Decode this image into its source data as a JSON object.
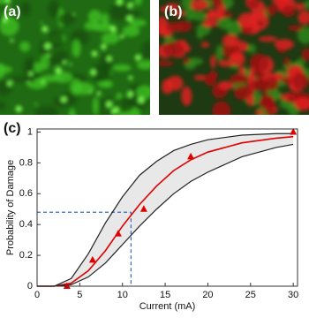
{
  "panels": {
    "a": "(a)",
    "b": "(b)",
    "c": "(c)"
  },
  "chart_data": {
    "type": "line",
    "xlabel": "Current (mA)",
    "ylabel": "Probability of Damage",
    "xlim": [
      0,
      30.5
    ],
    "ylim": [
      0,
      1.02
    ],
    "xticks": [
      0,
      5,
      10,
      15,
      20,
      25,
      30
    ],
    "yticks": [
      0,
      0.2,
      0.4,
      0.6,
      0.8,
      1
    ],
    "x": [
      0,
      2,
      4,
      6,
      8,
      10,
      12,
      14,
      16,
      18,
      20,
      24,
      28,
      30
    ],
    "series": [
      {
        "color": "#e00000",
        "values": [
          0,
          0,
          0.02,
          0.1,
          0.23,
          0.39,
          0.53,
          0.65,
          0.75,
          0.82,
          0.87,
          0.93,
          0.96,
          0.97
        ]
      },
      {
        "color": "#222222",
        "values": [
          0,
          0,
          0.05,
          0.21,
          0.41,
          0.58,
          0.72,
          0.81,
          0.88,
          0.92,
          0.95,
          0.98,
          0.99,
          0.99
        ]
      },
      {
        "color": "#222222",
        "values": [
          0,
          0,
          0.01,
          0.06,
          0.15,
          0.27,
          0.39,
          0.5,
          0.6,
          0.68,
          0.74,
          0.84,
          0.9,
          0.92
        ]
      }
    ],
    "band_color": "#e8e8e8",
    "points": {
      "x": [
        3.5,
        6.5,
        9.5,
        12.5,
        18,
        30
      ],
      "values": [
        0,
        0.17,
        0.34,
        0.5,
        0.84,
        1
      ],
      "color": "#e00000"
    },
    "reference": {
      "x": 11,
      "y": 0.48,
      "color": "#3366cc"
    }
  }
}
